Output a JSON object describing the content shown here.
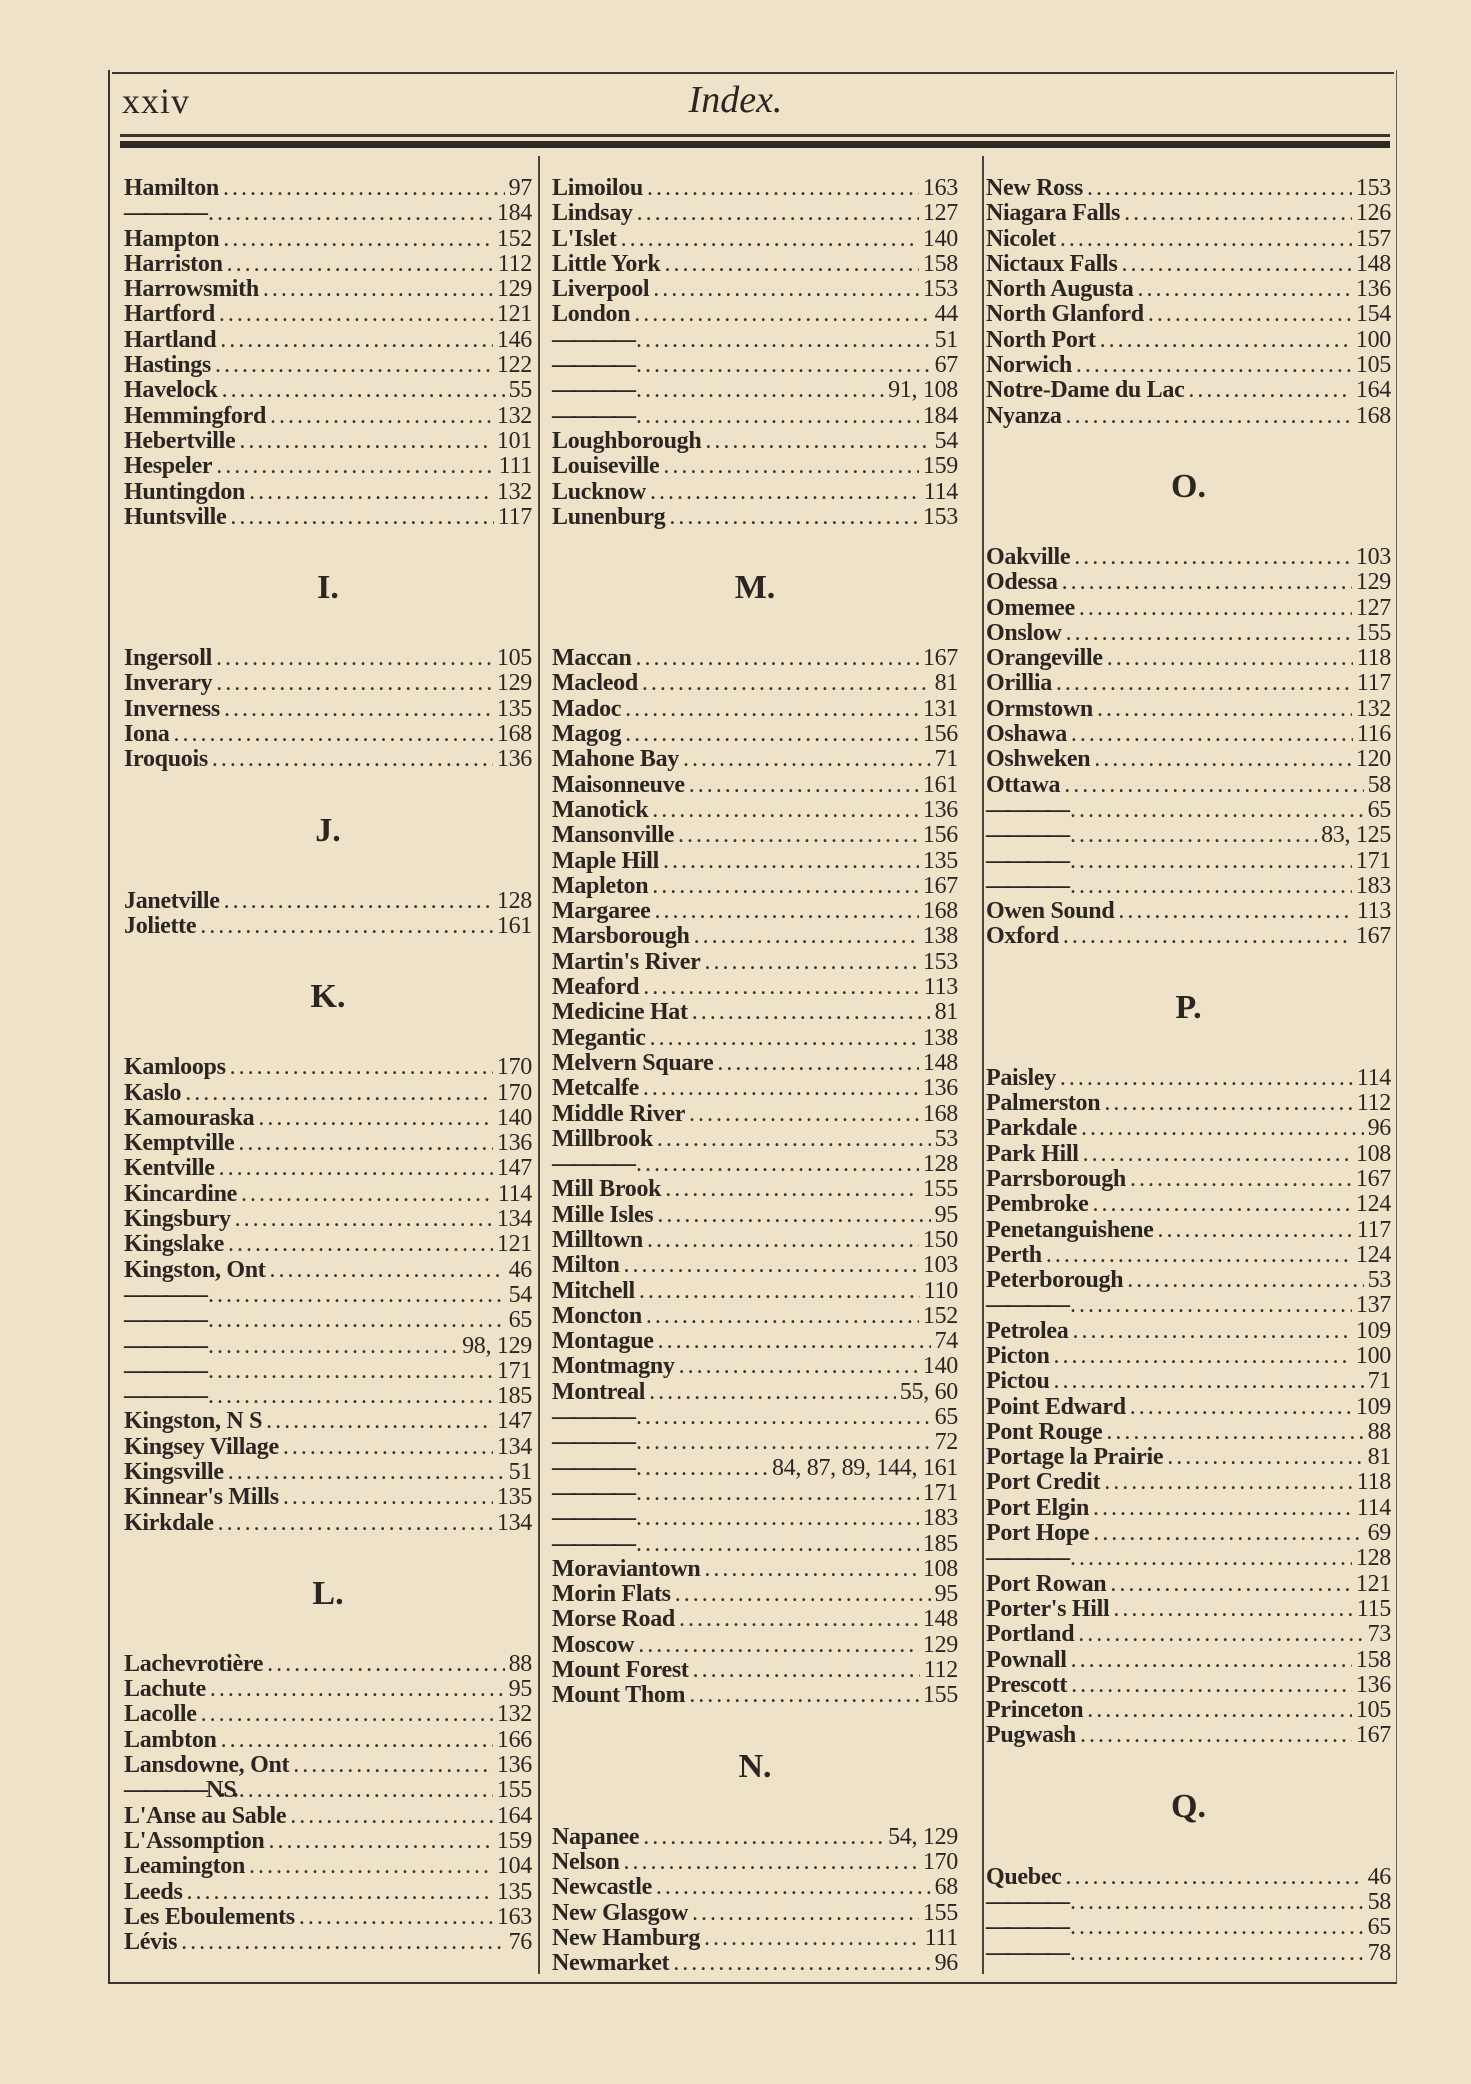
{
  "header": {
    "page_number": "xxiv",
    "title": "Index."
  },
  "columns": [
    [
      {
        "name": "Hamilton",
        "pages": "97"
      },
      {
        "dash": true,
        "name": "————",
        "pages": "184"
      },
      {
        "name": "Hampton",
        "pages": "152"
      },
      {
        "name": "Harriston",
        "pages": "112"
      },
      {
        "name": "Harrowsmith",
        "pages": "129"
      },
      {
        "name": "Hartford",
        "pages": "121"
      },
      {
        "name": "Hartland",
        "pages": "146"
      },
      {
        "name": "Hastings",
        "pages": "122"
      },
      {
        "name": "Havelock",
        "pages": "55"
      },
      {
        "name": "Hemmingford",
        "pages": "132"
      },
      {
        "name": "Hebertville",
        "pages": "101"
      },
      {
        "name": "Hespeler",
        "pages": "111"
      },
      {
        "name": "Huntingdon",
        "pages": "132"
      },
      {
        "name": "Huntsville",
        "pages": "117"
      },
      {
        "heading": "I."
      },
      {
        "name": "Ingersoll",
        "pages": "105"
      },
      {
        "name": "Inverary",
        "pages": "129"
      },
      {
        "name": "Inverness",
        "pages": "135"
      },
      {
        "name": "Iona",
        "pages": "168"
      },
      {
        "name": "Iroquois",
        "pages": "136"
      },
      {
        "heading": "J."
      },
      {
        "name": "Janetville",
        "pages": "128"
      },
      {
        "name": "Joliette",
        "pages": "161"
      },
      {
        "heading": "K."
      },
      {
        "name": "Kamloops",
        "pages": "170"
      },
      {
        "name": "Kaslo",
        "pages": "170"
      },
      {
        "name": "Kamouraska",
        "pages": "140"
      },
      {
        "name": "Kemptville",
        "pages": "136"
      },
      {
        "name": "Kentville",
        "pages": "147"
      },
      {
        "name": "Kincardine",
        "pages": "114"
      },
      {
        "name": "Kingsbury",
        "pages": "134"
      },
      {
        "name": "Kingslake",
        "pages": "121"
      },
      {
        "name": "Kingston, Ont",
        "pages": "46"
      },
      {
        "dash": true,
        "name": "————",
        "pages": "54"
      },
      {
        "dash": true,
        "name": "————",
        "pages": "65"
      },
      {
        "dash": true,
        "name": "————",
        "pages": "98, 129"
      },
      {
        "dash": true,
        "name": "————",
        "pages": "171"
      },
      {
        "dash": true,
        "name": "————",
        "pages": "185"
      },
      {
        "name": "Kingston, N S",
        "pages": "147"
      },
      {
        "name": "Kingsey Village",
        "pages": "134"
      },
      {
        "name": "Kingsville",
        "pages": "51"
      },
      {
        "name": "Kinnear's Mills",
        "pages": "135"
      },
      {
        "name": "Kirkdale",
        "pages": "134"
      },
      {
        "heading": "L."
      },
      {
        "name": "Lachevrotière",
        "pages": "88"
      },
      {
        "name": "Lachute",
        "pages": "95"
      },
      {
        "name": "Lacolle",
        "pages": "132"
      },
      {
        "name": "Lambton",
        "pages": "166"
      },
      {
        "name": "Lansdowne, Ont",
        "pages": "136"
      },
      {
        "dash": true,
        "name": "———— N. S.",
        "pages": "155"
      },
      {
        "name": "L'Anse au Sable",
        "pages": "164"
      },
      {
        "name": "L'Assomption",
        "pages": "159"
      },
      {
        "name": "Leamington",
        "pages": "104"
      },
      {
        "name": "Leeds",
        "pages": "135"
      },
      {
        "name": "Les Eboulements",
        "pages": "163"
      },
      {
        "name": "Lévis",
        "pages": "76"
      }
    ],
    [
      {
        "name": "Limoilou",
        "pages": "163"
      },
      {
        "name": "Lindsay",
        "pages": "127"
      },
      {
        "name": "L'Islet",
        "pages": "140"
      },
      {
        "name": "Little York",
        "pages": "158"
      },
      {
        "name": "Liverpool",
        "pages": "153"
      },
      {
        "name": "London",
        "pages": "44"
      },
      {
        "dash": true,
        "name": "————",
        "pages": "51"
      },
      {
        "dash": true,
        "name": "————",
        "pages": "67"
      },
      {
        "dash": true,
        "name": "————",
        "pages": "91, 108"
      },
      {
        "dash": true,
        "name": "————",
        "pages": "184"
      },
      {
        "name": "Loughborough",
        "pages": "54"
      },
      {
        "name": "Louiseville",
        "pages": "159"
      },
      {
        "name": "Lucknow",
        "pages": "114"
      },
      {
        "name": "Lunenburg",
        "pages": "153"
      },
      {
        "heading": "M."
      },
      {
        "name": "Maccan",
        "pages": "167"
      },
      {
        "name": "Macleod",
        "pages": "81"
      },
      {
        "name": "Madoc",
        "pages": "131"
      },
      {
        "name": "Magog",
        "pages": "156"
      },
      {
        "name": "Mahone Bay",
        "pages": "71"
      },
      {
        "name": "Maisonneuve",
        "pages": "161"
      },
      {
        "name": "Manotick",
        "pages": "136"
      },
      {
        "name": "Mansonville",
        "pages": "156"
      },
      {
        "name": "Maple Hill",
        "pages": "135"
      },
      {
        "name": "Mapleton",
        "pages": "167"
      },
      {
        "name": "Margaree",
        "pages": "168"
      },
      {
        "name": "Marsborough",
        "pages": "138"
      },
      {
        "name": "Martin's River",
        "pages": "153"
      },
      {
        "name": "Meaford",
        "pages": "113"
      },
      {
        "name": "Medicine Hat",
        "pages": "81"
      },
      {
        "name": "Megantic",
        "pages": "138"
      },
      {
        "name": "Melvern Square",
        "pages": "148"
      },
      {
        "name": "Metcalfe",
        "pages": "136"
      },
      {
        "name": "Middle River",
        "pages": "168"
      },
      {
        "name": "Millbrook",
        "pages": "53"
      },
      {
        "dash": true,
        "name": "————",
        "pages": "128"
      },
      {
        "name": "Mill Brook",
        "pages": "155"
      },
      {
        "name": "Mille Isles",
        "pages": "95"
      },
      {
        "name": "Milltown",
        "pages": "150"
      },
      {
        "name": "Milton",
        "pages": "103"
      },
      {
        "name": "Mitchell",
        "pages": "110"
      },
      {
        "name": "Moncton",
        "pages": "152"
      },
      {
        "name": "Montague",
        "pages": "74"
      },
      {
        "name": "Montmagny",
        "pages": "140"
      },
      {
        "name": "Montreal",
        "pages": "55, 60"
      },
      {
        "dash": true,
        "name": "————",
        "pages": "65"
      },
      {
        "dash": true,
        "name": "————",
        "pages": "72"
      },
      {
        "dash": true,
        "name": "————",
        "pages": "84, 87, 89, 144, 161"
      },
      {
        "dash": true,
        "name": "————",
        "pages": "171"
      },
      {
        "dash": true,
        "name": "————",
        "pages": "183"
      },
      {
        "dash": true,
        "name": "————",
        "pages": "185"
      },
      {
        "name": "Moraviantown",
        "pages": "108"
      },
      {
        "name": "Morin Flats",
        "pages": "95"
      },
      {
        "name": "Morse Road",
        "pages": "148"
      },
      {
        "name": "Moscow",
        "pages": "129"
      },
      {
        "name": "Mount Forest",
        "pages": "112"
      },
      {
        "name": "Mount Thom",
        "pages": "155"
      },
      {
        "heading": "N."
      },
      {
        "name": "Napanee",
        "pages": "54, 129"
      },
      {
        "name": "Nelson",
        "pages": "170"
      },
      {
        "name": "Newcastle",
        "pages": "68"
      },
      {
        "name": "New Glasgow",
        "pages": "155"
      },
      {
        "name": "New Hamburg",
        "pages": "111"
      },
      {
        "name": "Newmarket",
        "pages": "96"
      }
    ],
    [
      {
        "name": "New Ross",
        "pages": "153"
      },
      {
        "name": "Niagara Falls",
        "pages": "126"
      },
      {
        "name": "Nicolet",
        "pages": "157"
      },
      {
        "name": "Nictaux Falls",
        "pages": "148"
      },
      {
        "name": "North Augusta",
        "pages": "136"
      },
      {
        "name": "North Glanford",
        "pages": "154"
      },
      {
        "name": "North Port",
        "pages": "100"
      },
      {
        "name": "Norwich",
        "pages": "105"
      },
      {
        "name": "Notre-Dame du Lac",
        "pages": "164"
      },
      {
        "name": "Nyanza",
        "pages": "168"
      },
      {
        "heading": "O."
      },
      {
        "name": "Oakville",
        "pages": "103"
      },
      {
        "name": "Odessa",
        "pages": "129"
      },
      {
        "name": "Omemee",
        "pages": "127"
      },
      {
        "name": "Onslow",
        "pages": "155"
      },
      {
        "name": "Orangeville",
        "pages": "118"
      },
      {
        "name": "Orillia",
        "pages": "117"
      },
      {
        "name": "Ormstown",
        "pages": "132"
      },
      {
        "name": "Oshawa",
        "pages": "116"
      },
      {
        "name": "Oshweken",
        "pages": "120"
      },
      {
        "name": "Ottawa",
        "pages": "58"
      },
      {
        "dash": true,
        "name": "————",
        "pages": "65"
      },
      {
        "dash": true,
        "name": "————",
        "pages": "83, 125"
      },
      {
        "dash": true,
        "name": "————",
        "pages": "171"
      },
      {
        "dash": true,
        "name": "————",
        "pages": "183"
      },
      {
        "name": "Owen Sound",
        "pages": "113"
      },
      {
        "name": "Oxford",
        "pages": "167"
      },
      {
        "heading": "P."
      },
      {
        "name": "Paisley",
        "pages": "114"
      },
      {
        "name": "Palmerston",
        "pages": "112"
      },
      {
        "name": "Parkdale",
        "pages": "96"
      },
      {
        "name": "Park Hill",
        "pages": "108"
      },
      {
        "name": "Parrsborough",
        "pages": "167"
      },
      {
        "name": "Pembroke",
        "pages": "124"
      },
      {
        "name": "Penetanguishene",
        "pages": "117"
      },
      {
        "name": "Perth",
        "pages": "124"
      },
      {
        "name": "Peterborough",
        "pages": "53"
      },
      {
        "dash": true,
        "name": "————",
        "pages": "137"
      },
      {
        "name": "Petrolea",
        "pages": "109"
      },
      {
        "name": "Picton",
        "pages": "100"
      },
      {
        "name": "Pictou",
        "pages": "71"
      },
      {
        "name": "Point Edward",
        "pages": "109"
      },
      {
        "name": "Pont Rouge",
        "pages": "88"
      },
      {
        "name": "Portage la Prairie",
        "pages": "81"
      },
      {
        "name": "Port Credit",
        "pages": "118"
      },
      {
        "name": "Port Elgin",
        "pages": "114"
      },
      {
        "name": "Port Hope",
        "pages": "69"
      },
      {
        "dash": true,
        "name": "————",
        "pages": "128"
      },
      {
        "name": "Port Rowan",
        "pages": "121"
      },
      {
        "name": "Porter's Hill",
        "pages": "115"
      },
      {
        "name": "Portland",
        "pages": "73"
      },
      {
        "name": "Pownall",
        "pages": "158"
      },
      {
        "name": "Prescott",
        "pages": "136"
      },
      {
        "name": "Princeton",
        "pages": "105"
      },
      {
        "name": "Pugwash",
        "pages": "167"
      },
      {
        "heading": "Q."
      },
      {
        "name": "Quebec",
        "pages": "46"
      },
      {
        "dash": true,
        "name": "————",
        "pages": "58"
      },
      {
        "dash": true,
        "name": "————",
        "pages": "65"
      },
      {
        "dash": true,
        "name": "————",
        "pages": "78"
      }
    ]
  ]
}
